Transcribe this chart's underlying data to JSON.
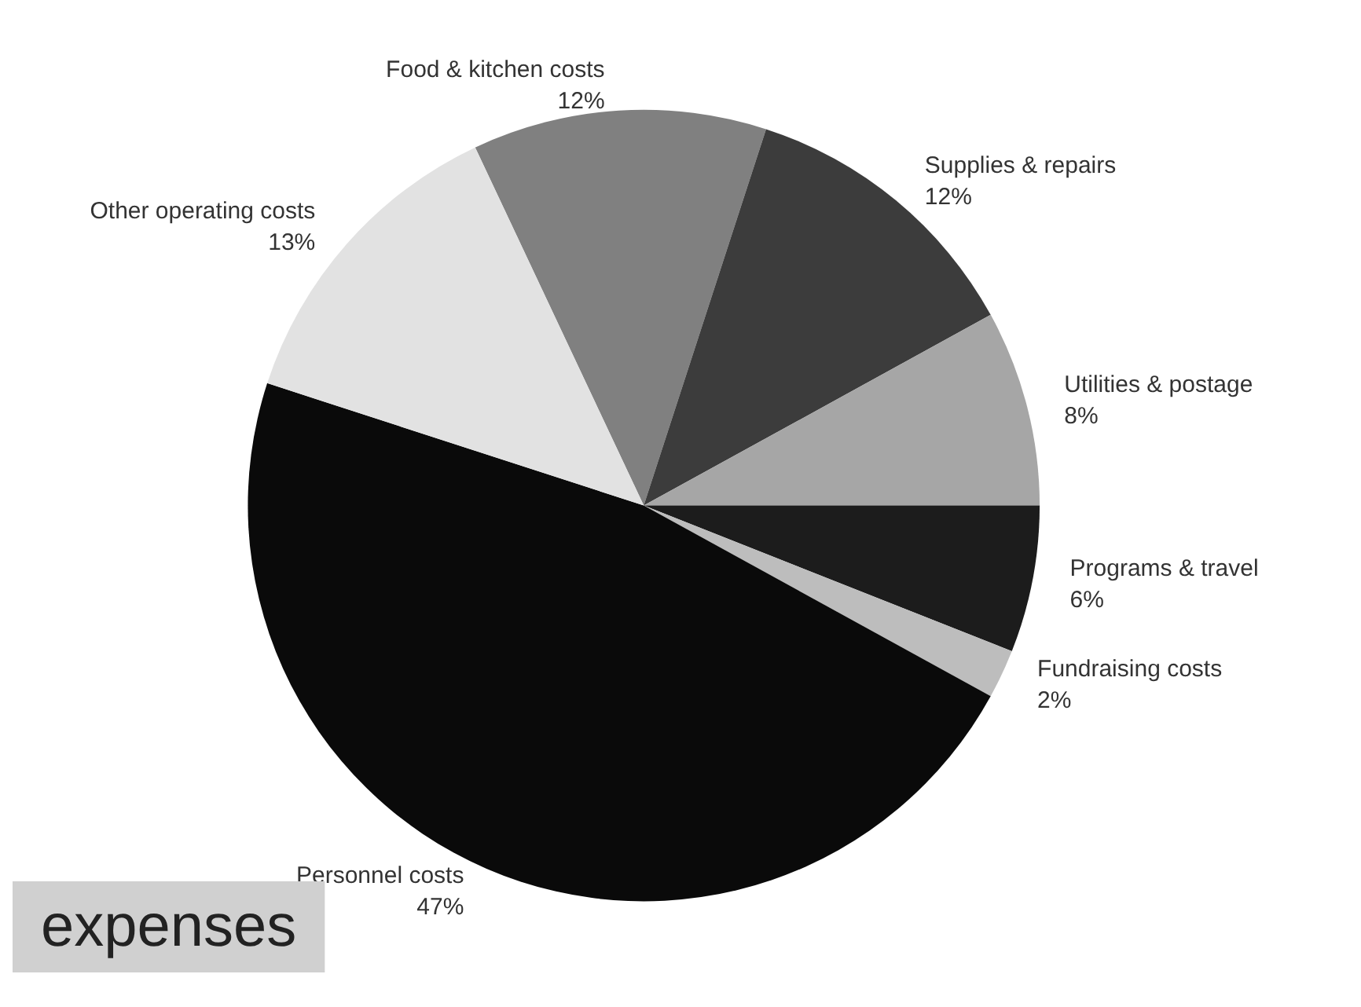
{
  "chart_data": {
    "type": "pie",
    "title": "expenses",
    "categories": [
      "Food & kitchen costs",
      "Supplies & repairs",
      "Utilities & postage",
      "Programs & travel",
      "Fundraising costs",
      "Personnel costs",
      "Other operating costs"
    ],
    "values": [
      12,
      12,
      8,
      6,
      2,
      47,
      13
    ],
    "value_labels": [
      "12%",
      "12%",
      "8%",
      "6%",
      "2%",
      "47%",
      "13%"
    ],
    "colors": [
      "#808080",
      "#3c3c3c",
      "#a6a6a6",
      "#1c1c1c",
      "#bdbdbd",
      "#0a0a0a",
      "#e2e2e2"
    ],
    "legend": false
  }
}
